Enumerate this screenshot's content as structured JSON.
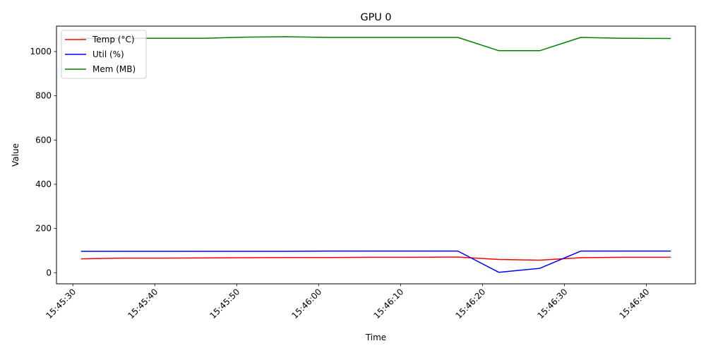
{
  "chart_data": {
    "type": "line",
    "title": "GPU 0",
    "xlabel": "Time",
    "ylabel": "Value",
    "x": [
      "15:45:31",
      "15:45:36",
      "15:45:41",
      "15:45:46",
      "15:45:51",
      "15:45:56",
      "15:46:01",
      "15:46:06",
      "15:46:11",
      "15:46:17",
      "15:46:22",
      "15:46:27",
      "15:46:32",
      "15:46:37",
      "15:46:43"
    ],
    "xlim": [
      "15:45:28",
      "15:46:46"
    ],
    "ylim": [
      -50,
      1115
    ],
    "xticks": [
      "15:45:30",
      "15:45:40",
      "15:45:50",
      "15:46:00",
      "15:46:10",
      "15:46:20",
      "15:46:30",
      "15:46:40"
    ],
    "yticks": [
      0,
      200,
      400,
      600,
      800,
      1000
    ],
    "legend_position": "upper-left",
    "grid": false,
    "series": [
      {
        "name": "Temp (°C)",
        "color": "#ff0000",
        "values": [
          63,
          66,
          66,
          67,
          68,
          69,
          69,
          70,
          70,
          71,
          60,
          57,
          68,
          70,
          70
        ]
      },
      {
        "name": "Util (%)",
        "color": "#0000ff",
        "values": [
          97,
          97,
          97,
          97,
          97,
          97,
          98,
          98,
          98,
          98,
          2,
          20,
          98,
          98,
          98
        ]
      },
      {
        "name": "Mem (MB)",
        "color": "#008000",
        "values": [
          1060,
          1060,
          1060,
          1060,
          1065,
          1067,
          1064,
          1064,
          1064,
          1064,
          1004,
          1004,
          1064,
          1060,
          1059
        ]
      }
    ]
  }
}
